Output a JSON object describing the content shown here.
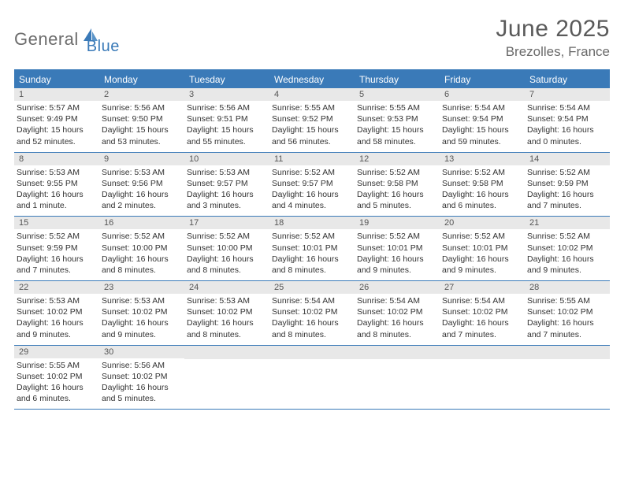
{
  "logo": {
    "text1": "General",
    "text2": "Blue"
  },
  "title": "June 2025",
  "location": "Brezolles, France",
  "day_headers": [
    "Sunday",
    "Monday",
    "Tuesday",
    "Wednesday",
    "Thursday",
    "Friday",
    "Saturday"
  ],
  "colors": {
    "brand_blue": "#3a7ab8",
    "header_gray": "#e8e8e8",
    "text_gray": "#6c6c6c"
  },
  "weeks": [
    [
      {
        "num": "1",
        "sunrise": "Sunrise: 5:57 AM",
        "sunset": "Sunset: 9:49 PM",
        "daylight": "Daylight: 15 hours and 52 minutes."
      },
      {
        "num": "2",
        "sunrise": "Sunrise: 5:56 AM",
        "sunset": "Sunset: 9:50 PM",
        "daylight": "Daylight: 15 hours and 53 minutes."
      },
      {
        "num": "3",
        "sunrise": "Sunrise: 5:56 AM",
        "sunset": "Sunset: 9:51 PM",
        "daylight": "Daylight: 15 hours and 55 minutes."
      },
      {
        "num": "4",
        "sunrise": "Sunrise: 5:55 AM",
        "sunset": "Sunset: 9:52 PM",
        "daylight": "Daylight: 15 hours and 56 minutes."
      },
      {
        "num": "5",
        "sunrise": "Sunrise: 5:55 AM",
        "sunset": "Sunset: 9:53 PM",
        "daylight": "Daylight: 15 hours and 58 minutes."
      },
      {
        "num": "6",
        "sunrise": "Sunrise: 5:54 AM",
        "sunset": "Sunset: 9:54 PM",
        "daylight": "Daylight: 15 hours and 59 minutes."
      },
      {
        "num": "7",
        "sunrise": "Sunrise: 5:54 AM",
        "sunset": "Sunset: 9:54 PM",
        "daylight": "Daylight: 16 hours and 0 minutes."
      }
    ],
    [
      {
        "num": "8",
        "sunrise": "Sunrise: 5:53 AM",
        "sunset": "Sunset: 9:55 PM",
        "daylight": "Daylight: 16 hours and 1 minute."
      },
      {
        "num": "9",
        "sunrise": "Sunrise: 5:53 AM",
        "sunset": "Sunset: 9:56 PM",
        "daylight": "Daylight: 16 hours and 2 minutes."
      },
      {
        "num": "10",
        "sunrise": "Sunrise: 5:53 AM",
        "sunset": "Sunset: 9:57 PM",
        "daylight": "Daylight: 16 hours and 3 minutes."
      },
      {
        "num": "11",
        "sunrise": "Sunrise: 5:52 AM",
        "sunset": "Sunset: 9:57 PM",
        "daylight": "Daylight: 16 hours and 4 minutes."
      },
      {
        "num": "12",
        "sunrise": "Sunrise: 5:52 AM",
        "sunset": "Sunset: 9:58 PM",
        "daylight": "Daylight: 16 hours and 5 minutes."
      },
      {
        "num": "13",
        "sunrise": "Sunrise: 5:52 AM",
        "sunset": "Sunset: 9:58 PM",
        "daylight": "Daylight: 16 hours and 6 minutes."
      },
      {
        "num": "14",
        "sunrise": "Sunrise: 5:52 AM",
        "sunset": "Sunset: 9:59 PM",
        "daylight": "Daylight: 16 hours and 7 minutes."
      }
    ],
    [
      {
        "num": "15",
        "sunrise": "Sunrise: 5:52 AM",
        "sunset": "Sunset: 9:59 PM",
        "daylight": "Daylight: 16 hours and 7 minutes."
      },
      {
        "num": "16",
        "sunrise": "Sunrise: 5:52 AM",
        "sunset": "Sunset: 10:00 PM",
        "daylight": "Daylight: 16 hours and 8 minutes."
      },
      {
        "num": "17",
        "sunrise": "Sunrise: 5:52 AM",
        "sunset": "Sunset: 10:00 PM",
        "daylight": "Daylight: 16 hours and 8 minutes."
      },
      {
        "num": "18",
        "sunrise": "Sunrise: 5:52 AM",
        "sunset": "Sunset: 10:01 PM",
        "daylight": "Daylight: 16 hours and 8 minutes."
      },
      {
        "num": "19",
        "sunrise": "Sunrise: 5:52 AM",
        "sunset": "Sunset: 10:01 PM",
        "daylight": "Daylight: 16 hours and 9 minutes."
      },
      {
        "num": "20",
        "sunrise": "Sunrise: 5:52 AM",
        "sunset": "Sunset: 10:01 PM",
        "daylight": "Daylight: 16 hours and 9 minutes."
      },
      {
        "num": "21",
        "sunrise": "Sunrise: 5:52 AM",
        "sunset": "Sunset: 10:02 PM",
        "daylight": "Daylight: 16 hours and 9 minutes."
      }
    ],
    [
      {
        "num": "22",
        "sunrise": "Sunrise: 5:53 AM",
        "sunset": "Sunset: 10:02 PM",
        "daylight": "Daylight: 16 hours and 9 minutes."
      },
      {
        "num": "23",
        "sunrise": "Sunrise: 5:53 AM",
        "sunset": "Sunset: 10:02 PM",
        "daylight": "Daylight: 16 hours and 9 minutes."
      },
      {
        "num": "24",
        "sunrise": "Sunrise: 5:53 AM",
        "sunset": "Sunset: 10:02 PM",
        "daylight": "Daylight: 16 hours and 8 minutes."
      },
      {
        "num": "25",
        "sunrise": "Sunrise: 5:54 AM",
        "sunset": "Sunset: 10:02 PM",
        "daylight": "Daylight: 16 hours and 8 minutes."
      },
      {
        "num": "26",
        "sunrise": "Sunrise: 5:54 AM",
        "sunset": "Sunset: 10:02 PM",
        "daylight": "Daylight: 16 hours and 8 minutes."
      },
      {
        "num": "27",
        "sunrise": "Sunrise: 5:54 AM",
        "sunset": "Sunset: 10:02 PM",
        "daylight": "Daylight: 16 hours and 7 minutes."
      },
      {
        "num": "28",
        "sunrise": "Sunrise: 5:55 AM",
        "sunset": "Sunset: 10:02 PM",
        "daylight": "Daylight: 16 hours and 7 minutes."
      }
    ],
    [
      {
        "num": "29",
        "sunrise": "Sunrise: 5:55 AM",
        "sunset": "Sunset: 10:02 PM",
        "daylight": "Daylight: 16 hours and 6 minutes."
      },
      {
        "num": "30",
        "sunrise": "Sunrise: 5:56 AM",
        "sunset": "Sunset: 10:02 PM",
        "daylight": "Daylight: 16 hours and 5 minutes."
      },
      {
        "empty": true
      },
      {
        "empty": true
      },
      {
        "empty": true
      },
      {
        "empty": true
      },
      {
        "empty": true
      }
    ]
  ]
}
